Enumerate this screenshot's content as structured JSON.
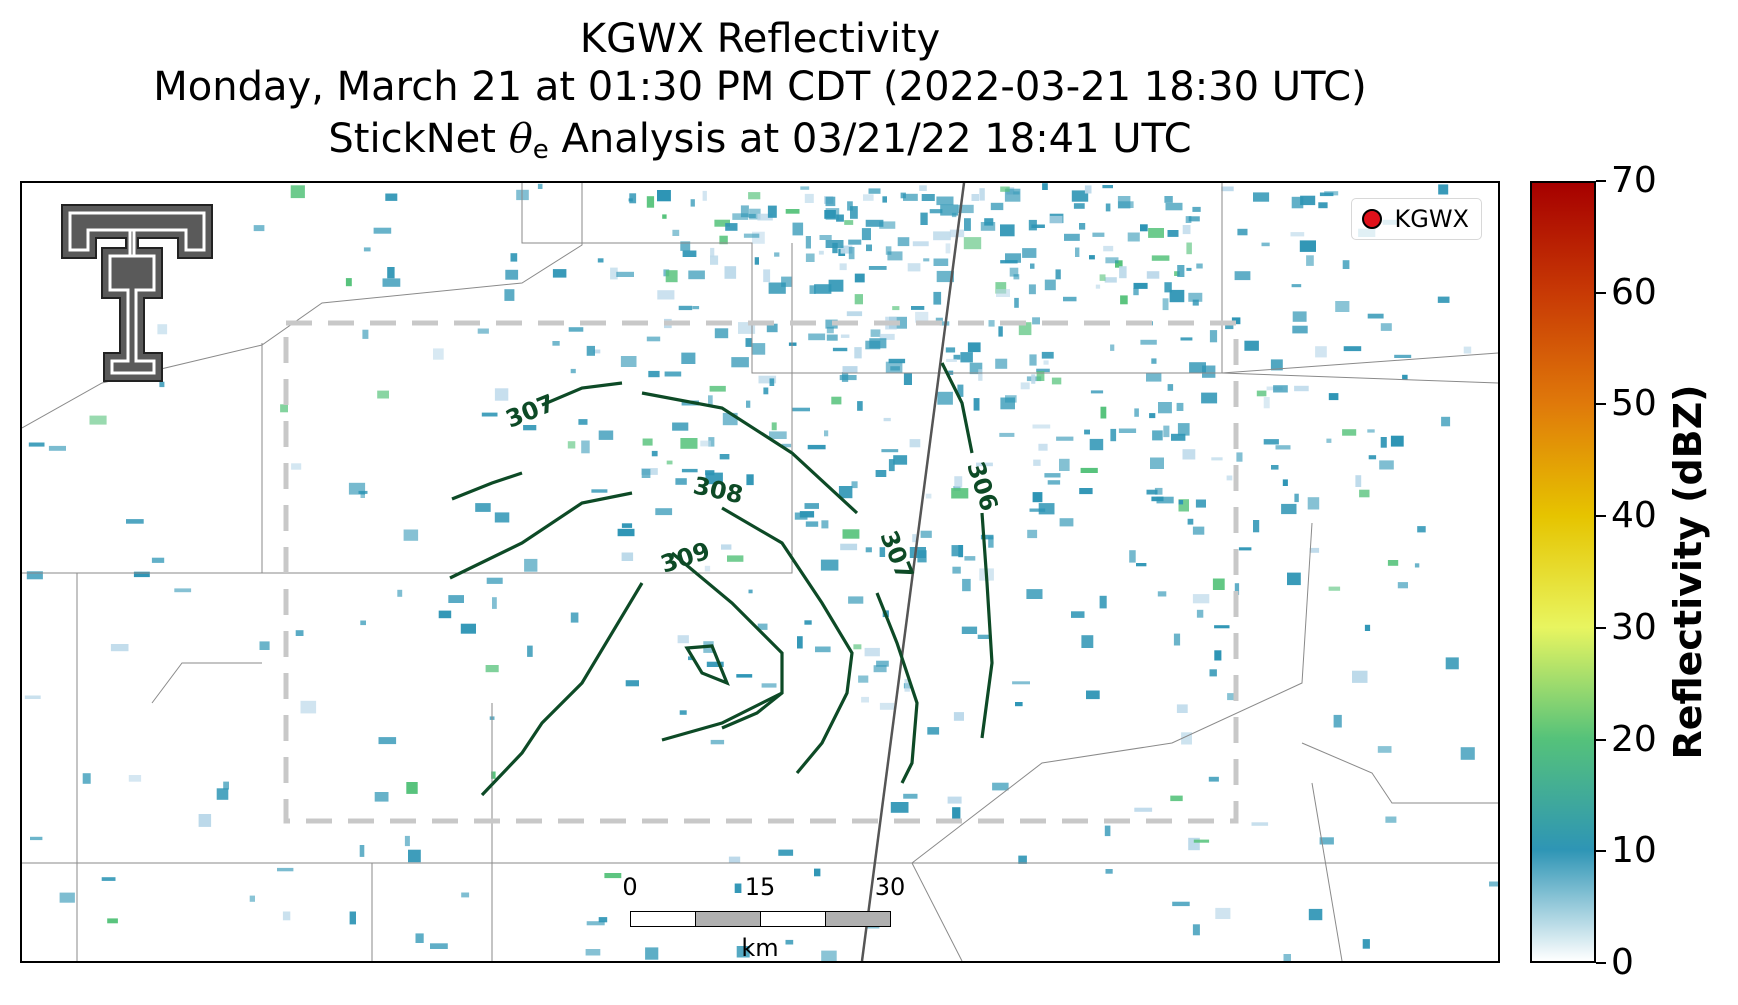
{
  "title": {
    "line1": "KGWX Reflectivity",
    "line2": "Monday, March 21 at 01:30 PM CDT (2022-03-21 18:30 UTC)",
    "line3_prefix": "StickNet ",
    "line3_symbol": "θ",
    "line3_subscript": "e",
    "line3_suffix": " Analysis at 03/21/22 18:41 UTC"
  },
  "legend": {
    "label": "KGWX",
    "marker_color": "#e0101a"
  },
  "scale_bar": {
    "ticks": [
      "0",
      "15",
      "30"
    ],
    "units": "km"
  },
  "colorbar": {
    "label": "Reflectivity (dBZ)",
    "range": [
      0,
      70
    ],
    "ticks": [
      "0",
      "10",
      "20",
      "30",
      "40",
      "50",
      "60",
      "70"
    ],
    "colors": [
      "#ffffff",
      "#2e95b5",
      "#55c27a",
      "#e8f560",
      "#e6c400",
      "#e07a0a",
      "#c83a05",
      "#a60000"
    ]
  },
  "contours": {
    "color": "#0d4a26",
    "labels": [
      "307",
      "308",
      "309",
      "307",
      "306"
    ]
  },
  "logo": {
    "name": "Texas Tech Double T"
  },
  "colors": {
    "echo_low": "#2e95b5",
    "echo_mid": "#55c27a",
    "domain_box": "#c8c8c8",
    "boundaries": "#888888"
  }
}
